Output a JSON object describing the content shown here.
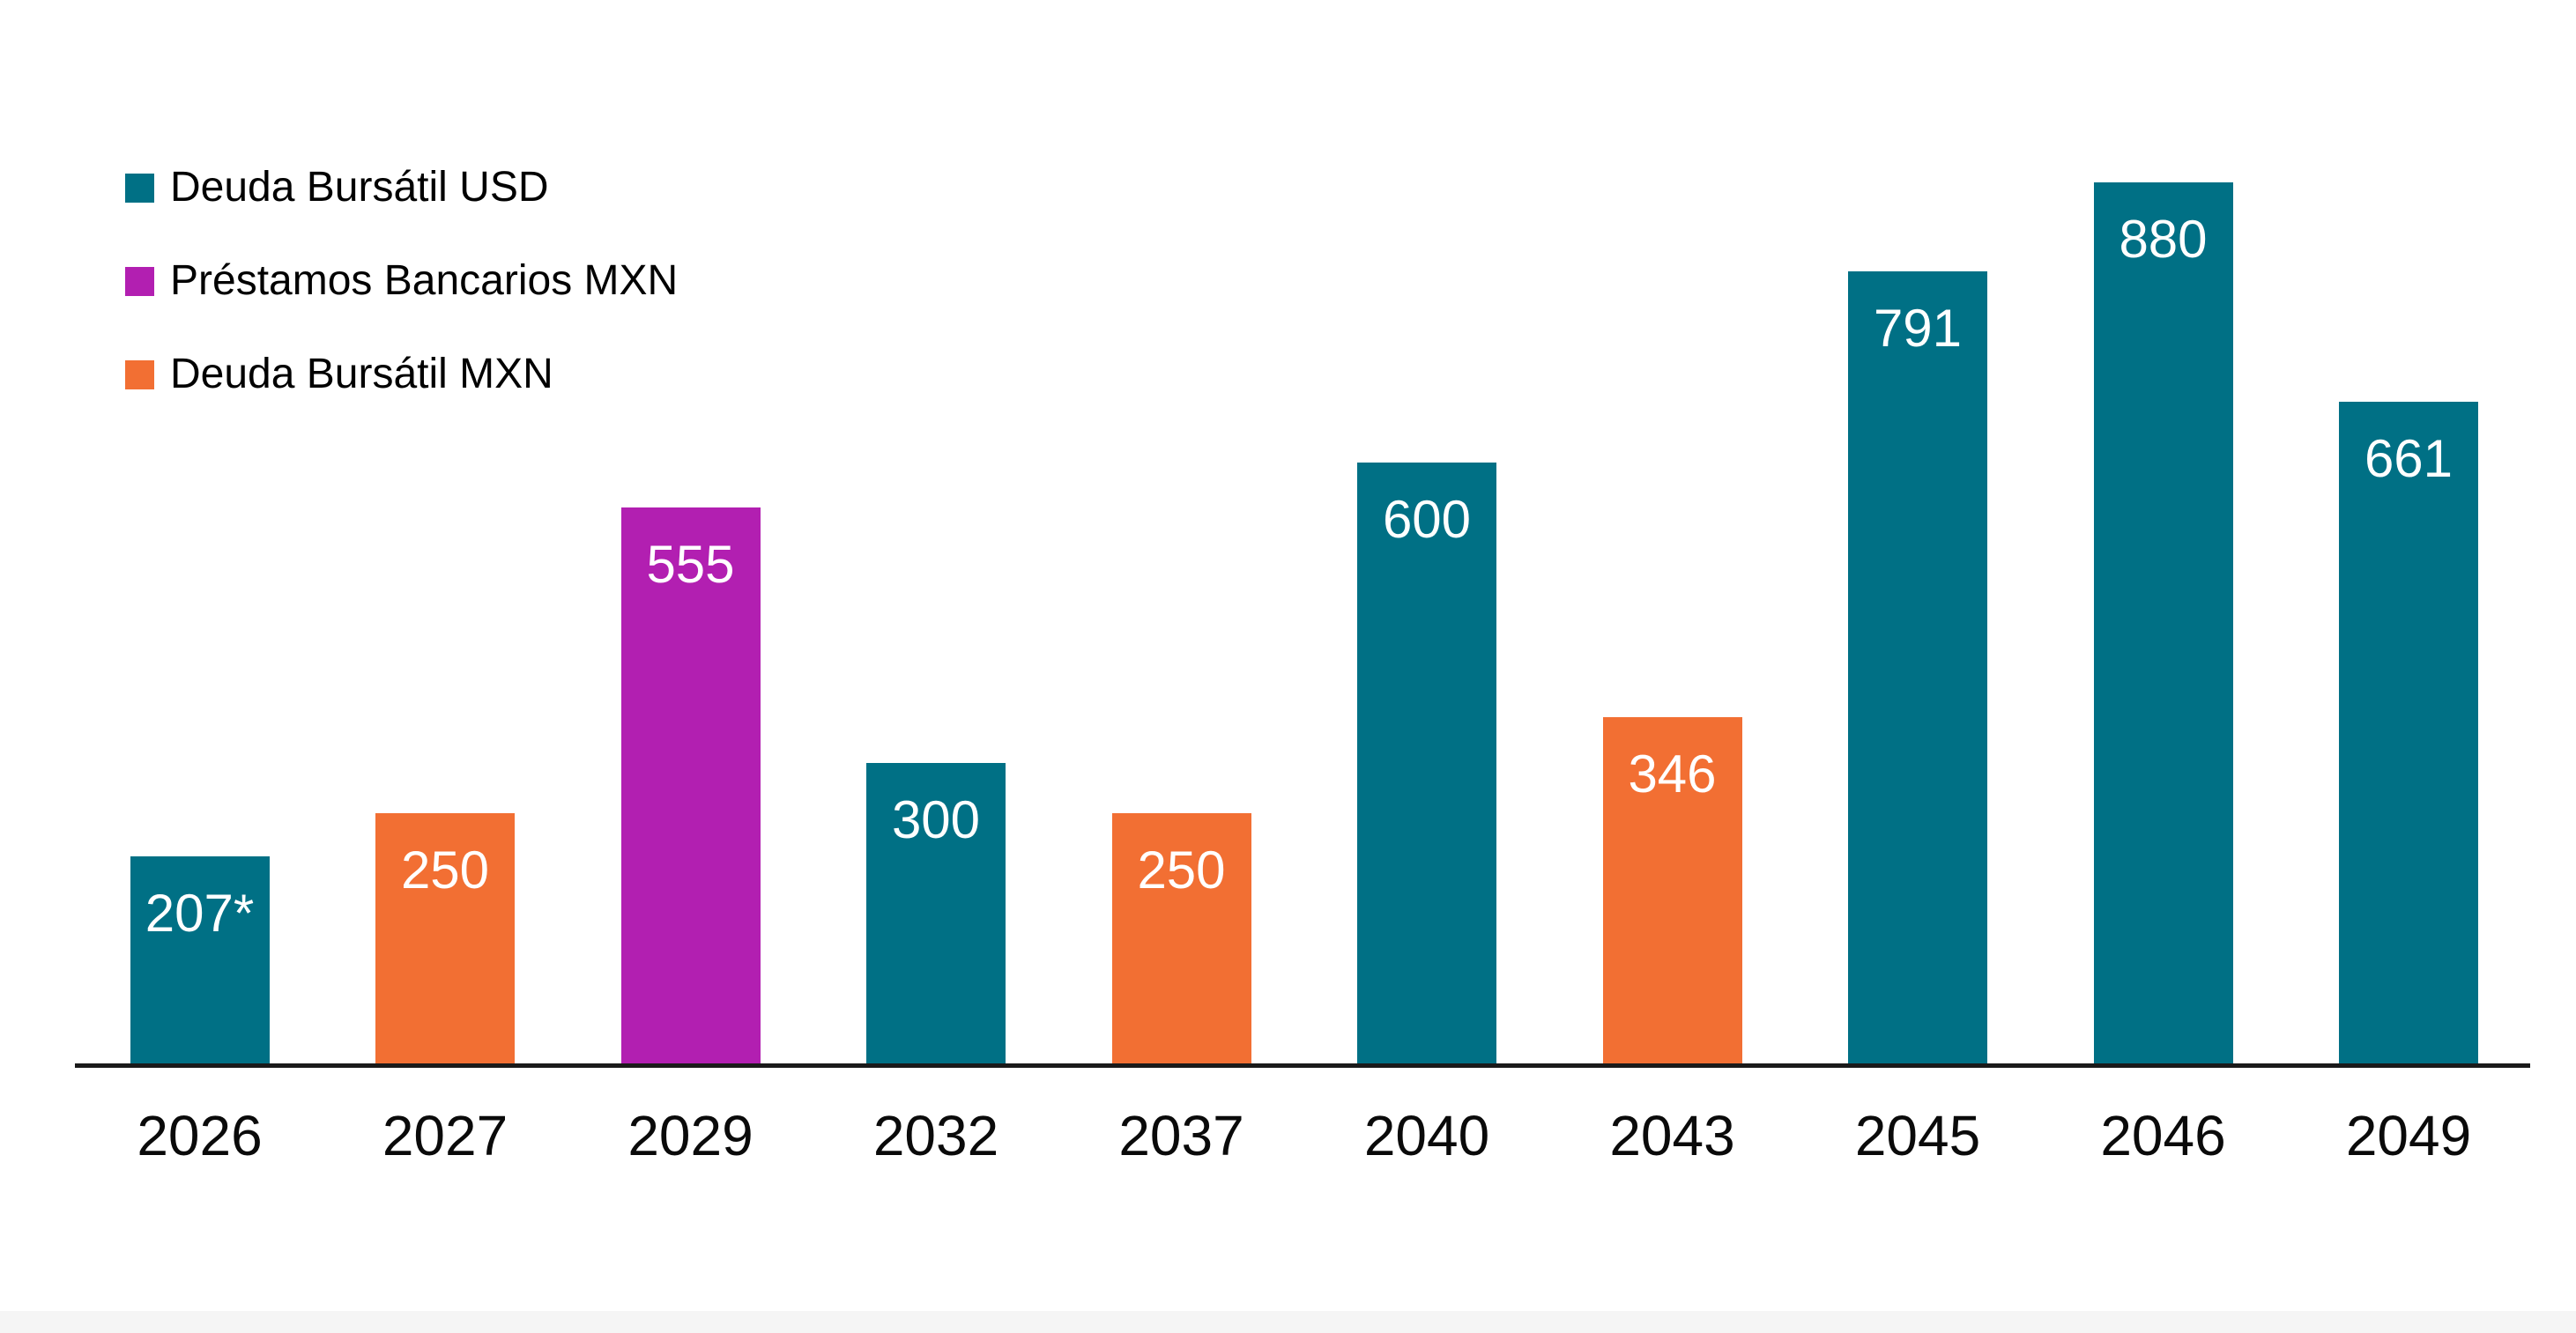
{
  "page": {
    "background_color": "#ffffff",
    "footer_strip_color": "#f5f5f5",
    "axis_line_color": "#1a1a1a"
  },
  "chart_data": {
    "type": "bar",
    "title": "",
    "xlabel": "",
    "ylabel": "",
    "grid": false,
    "legend_position": "top-left",
    "ylim": [
      0,
      1060
    ],
    "categories": [
      "2026",
      "2027",
      "2029",
      "2032",
      "2037",
      "2040",
      "2043",
      "2045",
      "2046",
      "2049"
    ],
    "series_legend": [
      {
        "name": "Deuda Bursátil USD",
        "color": "#007085"
      },
      {
        "name": "Préstamos Bancarios MXN",
        "color": "#b21fb1"
      },
      {
        "name": "Deuda Bursátil MXN",
        "color": "#f26f33"
      }
    ],
    "points": [
      {
        "category": "2026",
        "value": 207,
        "label": "207*",
        "series": "Deuda Bursátil USD"
      },
      {
        "category": "2027",
        "value": 250,
        "label": "250",
        "series": "Deuda Bursátil MXN"
      },
      {
        "category": "2029",
        "value": 555,
        "label": "555",
        "series": "Préstamos Bancarios MXN"
      },
      {
        "category": "2032",
        "value": 300,
        "label": "300",
        "series": "Deuda Bursátil USD"
      },
      {
        "category": "2037",
        "value": 250,
        "label": "250",
        "series": "Deuda Bursátil MXN"
      },
      {
        "category": "2040",
        "value": 600,
        "label": "600",
        "series": "Deuda Bursátil USD"
      },
      {
        "category": "2043",
        "value": 346,
        "label": "346",
        "series": "Deuda Bursátil MXN"
      },
      {
        "category": "2045",
        "value": 791,
        "label": "791",
        "series": "Deuda Bursátil USD"
      },
      {
        "category": "2046",
        "value": 880,
        "label": "880",
        "series": "Deuda Bursátil USD"
      },
      {
        "category": "2049",
        "value": 661,
        "label": "661",
        "series": "Deuda Bursátil USD"
      }
    ]
  }
}
